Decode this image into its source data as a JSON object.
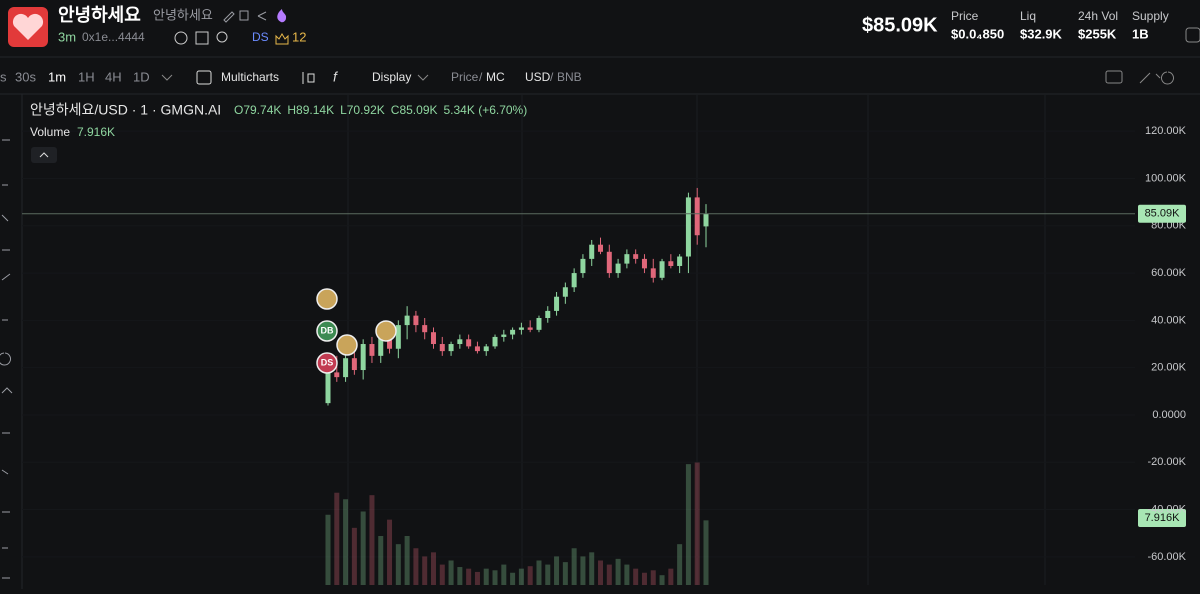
{
  "header": {
    "title": "안녕하세요",
    "subtitle": "안녕하세요",
    "age": "3m",
    "address": "0x1e...4444",
    "tag": "DS",
    "holders_badge": "12"
  },
  "stats": {
    "market_cap": "$85.09K",
    "items": [
      {
        "label": "Price",
        "value": "$0.0₄850"
      },
      {
        "label": "Liq",
        "value": "$32.9K"
      },
      {
        "label": "24h Vol",
        "value": "$255K"
      },
      {
        "label": "Supply",
        "value": "1B"
      }
    ]
  },
  "toolbar": {
    "intervals": [
      "s",
      "30s",
      "1m",
      "1H",
      "4H",
      "1D"
    ],
    "active_interval": "1m",
    "multicharts": "Multicharts",
    "display": "Display",
    "price": "Price",
    "mc": "MC",
    "usd": "USD",
    "bnb": "BNB",
    "separator": "/"
  },
  "chart_data": {
    "type": "candlestick",
    "title": "안녕하세요/USD · 1 · GMGN.AI",
    "ohlc_labels": [
      "O79.74K",
      "H89.14K",
      "L70.92K",
      "C85.09K",
      "5.34K (+6.70%)"
    ],
    "volume_label": "Volume",
    "volume_value_label": "7.916K",
    "markers": [
      "DB",
      "DS"
    ],
    "up_color": "#8fd6a0",
    "down_color": "#e0677a",
    "open": [
      5000,
      18000,
      16000,
      24000,
      19000,
      30000,
      25000,
      33000,
      28000,
      38000,
      42000,
      38000,
      35000,
      30000,
      27000,
      30000,
      32000,
      29000,
      27000,
      29000,
      33000,
      34000,
      36000,
      37000,
      36000,
      41000,
      44000,
      50000,
      54000,
      60000,
      66000,
      72000,
      69000,
      60000,
      64000,
      68000,
      66000,
      62000,
      58000,
      65000,
      63000,
      67000,
      92000,
      79740
    ],
    "high": [
      20000,
      25000,
      28000,
      27000,
      32000,
      33000,
      37000,
      36000,
      40000,
      46000,
      44000,
      41000,
      37000,
      33000,
      31000,
      34000,
      34000,
      31000,
      30000,
      34000,
      36000,
      37000,
      39000,
      40000,
      42000,
      46000,
      52000,
      56000,
      62000,
      68000,
      74000,
      75000,
      72000,
      66000,
      70000,
      70000,
      68000,
      66000,
      66000,
      68000,
      68000,
      94000,
      96000,
      89140
    ],
    "low": [
      4000,
      14000,
      14000,
      17000,
      15000,
      22000,
      22000,
      26000,
      24000,
      32000,
      35000,
      32000,
      28000,
      25000,
      25000,
      28000,
      28000,
      26000,
      25000,
      28000,
      31000,
      32000,
      34000,
      35000,
      35000,
      39000,
      42000,
      47000,
      52000,
      58000,
      63000,
      68000,
      58000,
      58000,
      62000,
      64000,
      60000,
      56000,
      57000,
      62000,
      60000,
      60000,
      72000,
      70920
    ],
    "close": [
      18000,
      16000,
      24000,
      19000,
      30000,
      25000,
      33000,
      28000,
      38000,
      42000,
      38000,
      35000,
      30000,
      27000,
      30000,
      32000,
      29000,
      27000,
      29000,
      33000,
      34000,
      36000,
      37000,
      36000,
      41000,
      44000,
      50000,
      54000,
      60000,
      66000,
      72000,
      69000,
      60000,
      64000,
      68000,
      66000,
      62000,
      58000,
      65000,
      63000,
      67000,
      92000,
      76000,
      85090
    ],
    "volume": [
      8600,
      11300,
      10500,
      7000,
      9000,
      11000,
      6000,
      8000,
      5000,
      6000,
      4500,
      3500,
      4000,
      2500,
      3000,
      2200,
      2000,
      1600,
      2000,
      1800,
      2500,
      1500,
      2000,
      2300,
      3000,
      2500,
      3500,
      2800,
      4500,
      3500,
      4000,
      3000,
      2500,
      3200,
      2500,
      2000,
      1500,
      1800,
      1200,
      2000,
      5000,
      14800,
      15000,
      7916
    ],
    "ylim": [
      -71900,
      135300
    ],
    "y2lim": [
      0,
      60000
    ],
    "yticks": [
      {
        "value": 120000,
        "label": "120.00K"
      },
      {
        "value": 100000,
        "label": "100.00K"
      },
      {
        "value": 80000,
        "label": "80.00K"
      },
      {
        "value": 60000,
        "label": "60.00K"
      },
      {
        "value": 40000,
        "label": "40.00K"
      },
      {
        "value": 20000,
        "label": "20.00K"
      },
      {
        "value": 0,
        "label": "0.0000"
      },
      {
        "value": -20000,
        "label": "-20.00K"
      },
      {
        "value": -40000,
        "label": "-40.00K"
      },
      {
        "value": -60000,
        "label": "-60.00K"
      }
    ],
    "last_price": {
      "value": 85090,
      "label": "85.09K"
    }
  }
}
